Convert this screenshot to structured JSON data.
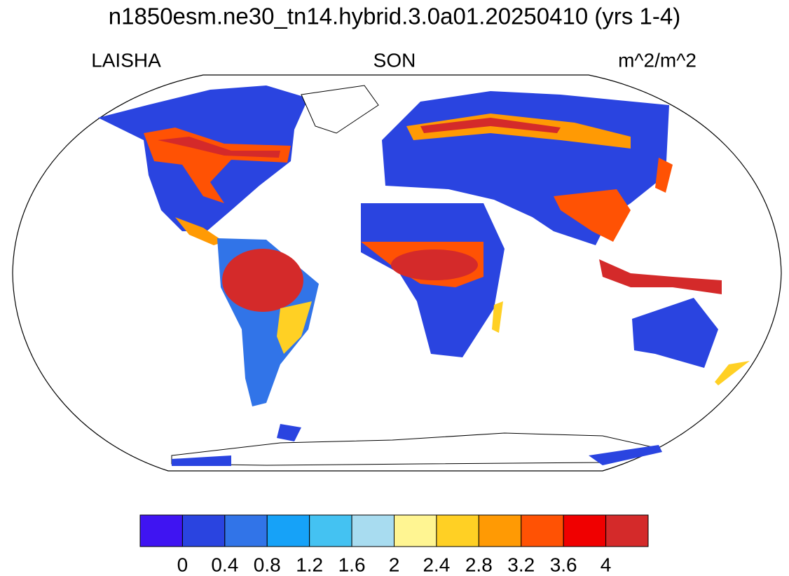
{
  "title": "n1850esm.ne30_tn14.hybrid.3.0a01.20250410 (yrs 1-4)",
  "left_label": "LAISHA",
  "center_label": "SON",
  "right_label": "m^2/m^2",
  "colorbar": {
    "colors": [
      "#3f14f2",
      "#2a44e0",
      "#3174e8",
      "#16a2f8",
      "#44c2f2",
      "#a8dcf0",
      "#fff592",
      "#ffd024",
      "#ff9a04",
      "#ff5204",
      "#f00000",
      "#d42a2a"
    ],
    "ticks": [
      0,
      0.4,
      0.8,
      1.2,
      1.6,
      2,
      2.4,
      2.8,
      3.2,
      3.6,
      4
    ]
  }
}
